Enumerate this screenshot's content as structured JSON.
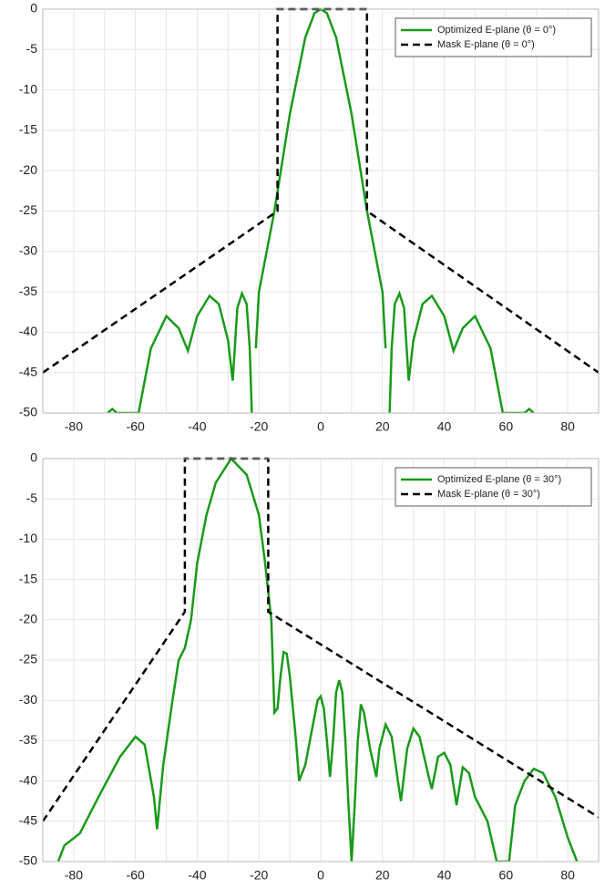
{
  "chart_data": [
    {
      "type": "line",
      "xlim": [
        -90,
        90
      ],
      "ylim": [
        -50,
        0
      ],
      "xticks": [
        -80,
        -60,
        -40,
        -20,
        0,
        20,
        40,
        60,
        80
      ],
      "xminorticks": [
        -90,
        -70,
        -50,
        -30,
        -10,
        10,
        30,
        50,
        70,
        90
      ],
      "yticks": [
        0,
        -5,
        -10,
        -15,
        -20,
        -25,
        -30,
        -35,
        -40,
        -45,
        -50
      ],
      "grid": true,
      "legend": "northeast",
      "series": [
        {
          "name": "Optimized E-plane (θ = 0°)",
          "color": "#1a9a1a",
          "dash": false,
          "x": [
            -69,
            -67.5,
            -66,
            -59,
            -55,
            -50,
            -46,
            -43,
            -40,
            -36,
            -33,
            -30,
            -28.5,
            -27,
            -25.5,
            -24,
            -23,
            -22.3,
            -21.5,
            -21,
            -20,
            -18,
            -15,
            -10,
            -5,
            -2,
            0,
            2,
            5,
            10,
            15,
            18,
            20,
            21,
            21.5,
            22.3,
            23,
            24,
            25.5,
            27,
            28.5,
            30,
            33,
            36,
            40,
            43,
            46,
            50,
            55,
            59,
            66,
            67.5,
            69
          ],
          "values": [
            -50,
            -49.5,
            -50,
            -50,
            -42,
            -38,
            -39.5,
            -42.3,
            -38,
            -35.5,
            -36.5,
            -41,
            -46,
            -37,
            -35.2,
            -36.5,
            -42,
            -50,
            null,
            -42,
            -35,
            -31,
            -25,
            -13,
            -3.5,
            -0.5,
            0,
            -0.5,
            -3.5,
            -13,
            -25,
            -31,
            -35,
            -42,
            null,
            -50,
            -42,
            -36.5,
            -35.2,
            -37,
            -46,
            -41,
            -36.5,
            -35.5,
            -38,
            -42.3,
            -39.5,
            -38,
            -42,
            -50,
            -50,
            -49.5,
            -50
          ]
        },
        {
          "name": "Mask E-plane (θ = 0°)",
          "color": "#000000",
          "dash": true,
          "x": [
            -90,
            -14,
            -14,
            15,
            15,
            90
          ],
          "values": [
            -45,
            -25,
            0,
            0,
            -25,
            -45
          ]
        }
      ]
    },
    {
      "type": "line",
      "xlim": [
        -90,
        90
      ],
      "ylim": [
        -50,
        0
      ],
      "xticks": [
        -80,
        -60,
        -40,
        -20,
        0,
        20,
        40,
        60,
        80
      ],
      "xminorticks": [
        -90,
        -70,
        -50,
        -30,
        -10,
        10,
        30,
        50,
        70,
        90
      ],
      "yticks": [
        0,
        -5,
        -10,
        -15,
        -20,
        -25,
        -30,
        -35,
        -40,
        -45,
        -50
      ],
      "grid": true,
      "legend": "northeast",
      "series": [
        {
          "name": "Optimized E-plane (θ = 30°)",
          "color": "#1a9a1a",
          "dash": false,
          "x": [
            -85,
            -83,
            -78,
            -72,
            -65,
            -60,
            -57,
            -54,
            -53,
            -51,
            -48,
            -46,
            -44,
            -42,
            -40,
            -37,
            -34,
            -29,
            -24,
            -20,
            -18,
            -16,
            -15,
            -14,
            -13,
            -12,
            -11,
            -10,
            -8,
            -7,
            -5,
            -3,
            -1,
            0,
            1,
            2,
            3,
            4,
            5,
            6,
            7,
            8,
            9,
            10,
            11,
            12,
            13,
            14,
            16,
            18,
            19,
            21,
            23,
            25,
            26,
            28,
            30,
            32,
            35,
            36,
            38,
            40,
            42,
            44,
            46,
            48,
            50,
            52,
            54,
            57,
            61,
            63,
            66,
            69,
            72,
            76,
            80,
            83
          ],
          "values": [
            -50,
            -48,
            -46.5,
            -42,
            -37,
            -34.5,
            -35.5,
            -42,
            -46,
            -38,
            -30,
            -25,
            -23.5,
            -20,
            -13,
            -7,
            -3,
            0,
            -2,
            -7,
            -13,
            -20,
            -31.5,
            -31,
            -27,
            -24,
            -24.2,
            -27,
            -35,
            -40,
            -38,
            -34,
            -30,
            -29.5,
            -31,
            -35,
            -39.5,
            -35,
            -29,
            -27.5,
            -29,
            -35,
            -43,
            -50,
            -43,
            -35,
            -30.5,
            -31.5,
            -36,
            -39.5,
            -36,
            -33,
            -34.5,
            -40,
            -42.5,
            -36,
            -33.5,
            -34.5,
            -39.5,
            -41,
            -37,
            -36.5,
            -38,
            -43,
            -38.3,
            -39,
            -42,
            -43.5,
            -45,
            -50,
            -50,
            -43,
            -40,
            -38.5,
            -39,
            -42,
            -47,
            -50
          ]
        },
        {
          "name": "Mask E-plane (θ = 30°)",
          "color": "#000000",
          "dash": true,
          "x": [
            -90,
            -44,
            -44,
            -17,
            -17,
            90
          ],
          "values": [
            -45,
            -19,
            0,
            0,
            -19,
            -44.5
          ]
        }
      ]
    }
  ]
}
